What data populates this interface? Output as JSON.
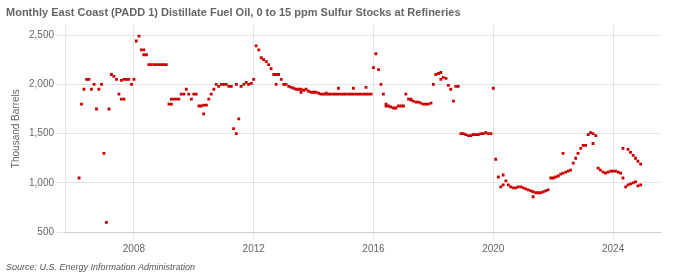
{
  "chart_data": {
    "type": "scatter",
    "title": "Monthly East Coast (PADD 1) Distillate Fuel Oil, 0 to 15 ppm Sulfur Stocks at Refineries",
    "ylabel": "Thousand Barrels",
    "source": "Source: U.S. Energy Information Administration",
    "color": "#CC0000",
    "marker": "square",
    "grid": true,
    "xlim": [
      2005.7,
      2025.6
    ],
    "xticks": [
      2008,
      2012,
      2016,
      2020,
      2024
    ],
    "ylim": [
      500,
      2600
    ],
    "yticks": [
      500,
      {
        "value": 1000,
        "label": "1,000"
      },
      {
        "value": 1500,
        "label": "1,500"
      },
      {
        "value": 2000,
        "label": "2,000"
      },
      {
        "value": 2500,
        "label": "2,500"
      }
    ],
    "x": [
      2006.17,
      2006.25,
      2006.33,
      2006.42,
      2006.5,
      2006.58,
      2006.67,
      2006.75,
      2006.83,
      2006.92,
      2007.0,
      2007.08,
      2007.17,
      2007.25,
      2007.33,
      2007.42,
      2007.5,
      2007.58,
      2007.67,
      2007.75,
      2007.83,
      2007.92,
      2008.0,
      2008.08,
      2008.17,
      2008.25,
      2008.33,
      2008.42,
      2008.5,
      2008.58,
      2008.67,
      2008.75,
      2008.83,
      2008.92,
      2009.0,
      2009.08,
      2009.17,
      2009.25,
      2009.33,
      2009.42,
      2009.5,
      2009.58,
      2009.67,
      2009.75,
      2009.83,
      2009.92,
      2010.0,
      2010.08,
      2010.17,
      2010.25,
      2010.33,
      2010.42,
      2010.5,
      2010.58,
      2010.67,
      2010.75,
      2010.83,
      2010.92,
      2011.0,
      2011.08,
      2011.17,
      2011.25,
      2011.33,
      2011.42,
      2011.5,
      2011.58,
      2011.67,
      2011.75,
      2011.83,
      2011.92,
      2012.0,
      2012.08,
      2012.17,
      2012.25,
      2012.33,
      2012.42,
      2012.5,
      2012.58,
      2012.67,
      2012.75,
      2012.83,
      2012.92,
      2013.0,
      2013.08,
      2013.17,
      2013.25,
      2013.33,
      2013.42,
      2013.5,
      2013.58,
      2013.67,
      2013.75,
      2013.83,
      2013.92,
      2014.0,
      2014.08,
      2014.17,
      2014.25,
      2014.33,
      2014.42,
      2014.5,
      2014.58,
      2014.67,
      2014.75,
      2014.83,
      2014.92,
      2015.0,
      2015.08,
      2015.17,
      2015.25,
      2015.33,
      2015.42,
      2015.5,
      2015.58,
      2015.67,
      2015.75,
      2015.83,
      2015.92,
      2016.0,
      2016.08,
      2016.17,
      2016.25,
      2016.33,
      2016.42,
      2016.5,
      2016.58,
      2016.67,
      2016.75,
      2016.83,
      2016.92,
      2017.0,
      2017.08,
      2017.17,
      2017.25,
      2017.33,
      2017.42,
      2017.5,
      2017.58,
      2017.67,
      2017.75,
      2017.83,
      2017.92,
      2018.0,
      2018.08,
      2018.17,
      2018.25,
      2018.33,
      2018.42,
      2018.5,
      2018.58,
      2018.67,
      2018.75,
      2018.83,
      2018.92,
      2019.0,
      2019.08,
      2019.17,
      2019.25,
      2019.33,
      2019.42,
      2019.5,
      2019.58,
      2019.67,
      2019.75,
      2019.83,
      2019.92,
      2020.0,
      2020.08,
      2020.17,
      2020.25,
      2020.33,
      2020.42,
      2020.5,
      2020.58,
      2020.67,
      2020.75,
      2020.83,
      2020.92,
      2021.0,
      2021.08,
      2021.17,
      2021.25,
      2021.33,
      2021.42,
      2021.5,
      2021.58,
      2021.67,
      2021.75,
      2021.83,
      2021.92,
      2022.0,
      2022.08,
      2022.17,
      2022.25,
      2022.33,
      2022.42,
      2022.5,
      2022.58,
      2022.67,
      2022.75,
      2022.83,
      2022.92,
      2023.0,
      2023.08,
      2023.17,
      2023.25,
      2023.33,
      2023.42,
      2023.5,
      2023.58,
      2023.67,
      2023.75,
      2023.83,
      2023.92,
      2024.0,
      2024.08,
      2024.17,
      2024.25,
      2024.33,
      2024.42,
      2024.5,
      2024.58,
      2024.67,
      2024.75,
      2024.83,
      2024.92,
      2007.58,
      2007.67,
      2008.33,
      2009.25,
      2010.33,
      2011.42,
      2012.75,
      2013.58,
      2014.42,
      2014.83,
      2015.33,
      2015.75,
      2016.42,
      2017.25,
      2018.25,
      2019.33,
      2020.33,
      2021.33,
      2022.33,
      2023.33,
      2024.33,
      2024.5,
      2024.58,
      2024.67,
      2024.75,
      2024.83,
      2024.92
    ],
    "values": [
      1050,
      1800,
      1950,
      2050,
      2050,
      1950,
      2000,
      1750,
      1950,
      2000,
      1300,
      600,
      1750,
      2100,
      2080,
      2050,
      1900,
      1850,
      2050,
      2050,
      2050,
      2000,
      2050,
      2440,
      2490,
      2350,
      2350,
      2300,
      2200,
      2200,
      2200,
      2200,
      2200,
      2200,
      2200,
      2200,
      1800,
      1850,
      1850,
      1850,
      1850,
      1900,
      1900,
      1950,
      1900,
      1850,
      1900,
      1900,
      1780,
      1780,
      1790,
      1790,
      1850,
      1900,
      1950,
      2000,
      1980,
      2000,
      2000,
      2000,
      1980,
      1980,
      1550,
      1500,
      1650,
      1980,
      2000,
      2020,
      2000,
      2010,
      2050,
      2390,
      2350,
      2270,
      2250,
      2230,
      2200,
      2160,
      2100,
      2100,
      2100,
      2050,
      2000,
      2000,
      1980,
      1970,
      1960,
      1950,
      1950,
      1950,
      1940,
      1950,
      1930,
      1920,
      1920,
      1920,
      1910,
      1900,
      1900,
      1910,
      1900,
      1900,
      1900,
      1900,
      1900,
      1900,
      1900,
      1900,
      1900,
      1900,
      1900,
      1900,
      1900,
      1900,
      1900,
      1900,
      1900,
      1900,
      2170,
      2310,
      2150,
      2000,
      1900,
      1800,
      1780,
      1770,
      1760,
      1760,
      1780,
      1780,
      1780,
      1900,
      1850,
      1850,
      1830,
      1820,
      1820,
      1810,
      1800,
      1800,
      1800,
      1810,
      2000,
      2100,
      2110,
      2120,
      2070,
      2060,
      1990,
      1950,
      1830,
      1980,
      1980,
      1500,
      1500,
      1490,
      1480,
      1480,
      1490,
      1490,
      1490,
      1500,
      1500,
      1510,
      1500,
      1500,
      1960,
      1240,
      1060,
      960,
      980,
      1020,
      980,
      960,
      950,
      950,
      960,
      960,
      950,
      940,
      930,
      920,
      910,
      900,
      900,
      900,
      910,
      920,
      930,
      1050,
      1050,
      1060,
      1070,
      1090,
      1100,
      1110,
      1120,
      1130,
      1200,
      1250,
      1300,
      1350,
      1380,
      1380,
      1490,
      1510,
      1500,
      1480,
      1150,
      1130,
      1110,
      1100,
      1110,
      1120,
      1120,
      1120,
      1110,
      1100,
      1050,
      960,
      980,
      990,
      1000,
      1010,
      970,
      980,
      2040,
      1850,
      2300,
      1800,
      1700,
      2000,
      2000,
      1920,
      1900,
      1960,
      1960,
      1970,
      1780,
      1840,
      2050,
      1490,
      1080,
      860,
      1300,
      1400,
      1350,
      1340,
      1310,
      1280,
      1250,
      1220,
      1190
    ]
  }
}
